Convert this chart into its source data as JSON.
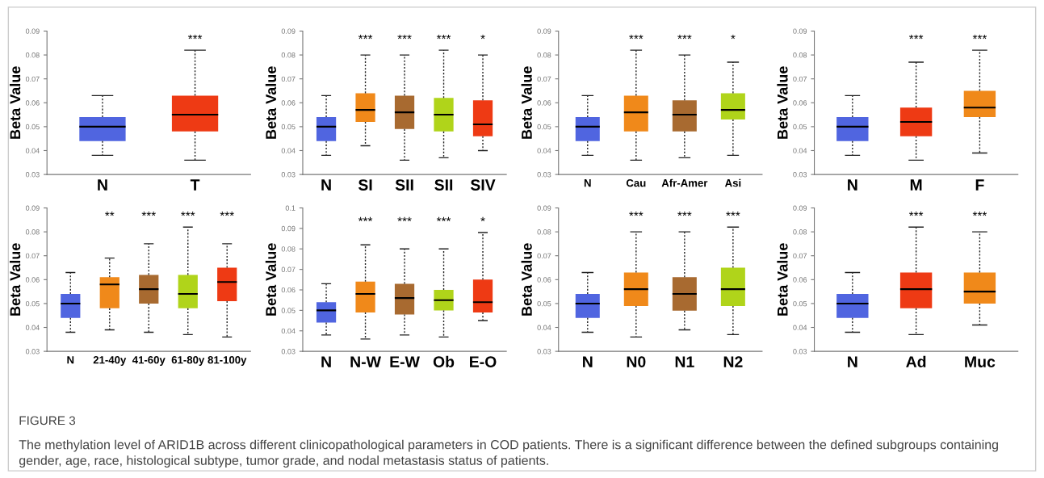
{
  "chart_data": [
    {
      "type": "box",
      "ylabel": "Beta Value",
      "categories": [
        "N",
        "T"
      ],
      "colors": [
        "#5065e0",
        "#ee3a14"
      ],
      "ylim": [
        0.03,
        0.09
      ],
      "yticks": [
        0.03,
        0.04,
        0.05,
        0.06,
        0.07,
        0.08,
        0.09
      ],
      "boxes": [
        {
          "low": 0.038,
          "q1": 0.044,
          "median": 0.05,
          "q3": 0.054,
          "high": 0.063
        },
        {
          "low": 0.036,
          "q1": 0.048,
          "median": 0.055,
          "q3": 0.063,
          "high": 0.082
        }
      ],
      "annotations": [
        "***"
      ]
    },
    {
      "type": "box",
      "ylabel": "Beta Value",
      "categories": [
        "N",
        "SI",
        "SII",
        "SII",
        "SIV"
      ],
      "colors": [
        "#5065e0",
        "#f0891a",
        "#a86a30",
        "#b0d41a",
        "#ee3a14"
      ],
      "ylim": [
        0.03,
        0.09
      ],
      "yticks": [
        0.03,
        0.04,
        0.05,
        0.06,
        0.07,
        0.08,
        0.09
      ],
      "boxes": [
        {
          "low": 0.038,
          "q1": 0.044,
          "median": 0.05,
          "q3": 0.054,
          "high": 0.063
        },
        {
          "low": 0.042,
          "q1": 0.052,
          "median": 0.057,
          "q3": 0.064,
          "high": 0.08
        },
        {
          "low": 0.036,
          "q1": 0.049,
          "median": 0.056,
          "q3": 0.063,
          "high": 0.08
        },
        {
          "low": 0.037,
          "q1": 0.048,
          "median": 0.055,
          "q3": 0.062,
          "high": 0.082
        },
        {
          "low": 0.04,
          "q1": 0.046,
          "median": 0.051,
          "q3": 0.061,
          "high": 0.08
        }
      ],
      "annotations": [
        "***",
        "***",
        "***",
        "*"
      ]
    },
    {
      "type": "box",
      "ylabel": "Beta Value",
      "categories": [
        "N",
        "Cau",
        "Afr-Amer",
        "Asi"
      ],
      "colors": [
        "#5065e0",
        "#f0891a",
        "#a86a30",
        "#b0d41a"
      ],
      "ylim": [
        0.03,
        0.09
      ],
      "yticks": [
        0.03,
        0.04,
        0.05,
        0.06,
        0.07,
        0.08,
        0.09
      ],
      "boxes": [
        {
          "low": 0.038,
          "q1": 0.044,
          "median": 0.05,
          "q3": 0.054,
          "high": 0.063
        },
        {
          "low": 0.036,
          "q1": 0.048,
          "median": 0.056,
          "q3": 0.063,
          "high": 0.082
        },
        {
          "low": 0.037,
          "q1": 0.048,
          "median": 0.055,
          "q3": 0.061,
          "high": 0.08
        },
        {
          "low": 0.038,
          "q1": 0.053,
          "median": 0.057,
          "q3": 0.064,
          "high": 0.077
        }
      ],
      "annotations": [
        "***",
        "***",
        "*"
      ]
    },
    {
      "type": "box",
      "ylabel": "Beta Value",
      "categories": [
        "N",
        "M",
        "F"
      ],
      "colors": [
        "#5065e0",
        "#ee3a14",
        "#f0891a"
      ],
      "ylim": [
        0.03,
        0.09
      ],
      "yticks": [
        0.03,
        0.04,
        0.05,
        0.06,
        0.07,
        0.08,
        0.09
      ],
      "boxes": [
        {
          "low": 0.038,
          "q1": 0.044,
          "median": 0.05,
          "q3": 0.054,
          "high": 0.063
        },
        {
          "low": 0.036,
          "q1": 0.046,
          "median": 0.052,
          "q3": 0.058,
          "high": 0.077
        },
        {
          "low": 0.039,
          "q1": 0.054,
          "median": 0.058,
          "q3": 0.065,
          "high": 0.082
        }
      ],
      "annotations": [
        "***",
        "***"
      ]
    },
    {
      "type": "box",
      "ylabel": "Beta Value",
      "categories": [
        "N",
        "21-40y",
        "41-60y",
        "61-80y",
        "81-100y"
      ],
      "colors": [
        "#5065e0",
        "#f0891a",
        "#a86a30",
        "#b0d41a",
        "#ee3a14"
      ],
      "ylim": [
        0.03,
        0.09
      ],
      "yticks": [
        0.03,
        0.04,
        0.05,
        0.06,
        0.07,
        0.08,
        0.09
      ],
      "boxes": [
        {
          "low": 0.038,
          "q1": 0.044,
          "median": 0.05,
          "q3": 0.054,
          "high": 0.063
        },
        {
          "low": 0.039,
          "q1": 0.048,
          "median": 0.058,
          "q3": 0.061,
          "high": 0.069
        },
        {
          "low": 0.038,
          "q1": 0.05,
          "median": 0.056,
          "q3": 0.062,
          "high": 0.075
        },
        {
          "low": 0.037,
          "q1": 0.048,
          "median": 0.054,
          "q3": 0.062,
          "high": 0.082
        },
        {
          "low": 0.036,
          "q1": 0.051,
          "median": 0.059,
          "q3": 0.065,
          "high": 0.075
        }
      ],
      "annotations": [
        "**",
        "***",
        "***",
        "***"
      ]
    },
    {
      "type": "box",
      "ylabel": "Beta Value",
      "categories": [
        "N",
        "N-W",
        "E-W",
        "Ob",
        "E-O"
      ],
      "colors": [
        "#5065e0",
        "#f0891a",
        "#a86a30",
        "#b0d41a",
        "#ee3a14"
      ],
      "ylim": [
        0.03,
        0.1
      ],
      "yticks": [
        0.03,
        0.04,
        0.05,
        0.06,
        0.07,
        0.08,
        0.09,
        0.1
      ],
      "boxes": [
        {
          "low": 0.038,
          "q1": 0.044,
          "median": 0.05,
          "q3": 0.054,
          "high": 0.063
        },
        {
          "low": 0.036,
          "q1": 0.049,
          "median": 0.058,
          "q3": 0.064,
          "high": 0.082
        },
        {
          "low": 0.038,
          "q1": 0.048,
          "median": 0.056,
          "q3": 0.063,
          "high": 0.08
        },
        {
          "low": 0.037,
          "q1": 0.05,
          "median": 0.055,
          "q3": 0.06,
          "high": 0.08
        },
        {
          "low": 0.045,
          "q1": 0.049,
          "median": 0.054,
          "q3": 0.065,
          "high": 0.088
        }
      ],
      "annotations": [
        "***",
        "***",
        "***",
        "*"
      ]
    },
    {
      "type": "box",
      "ylabel": "Beta Value",
      "categories": [
        "N",
        "N0",
        "N1",
        "N2"
      ],
      "colors": [
        "#5065e0",
        "#f0891a",
        "#a86a30",
        "#b0d41a"
      ],
      "ylim": [
        0.03,
        0.09
      ],
      "yticks": [
        0.03,
        0.04,
        0.05,
        0.06,
        0.07,
        0.08,
        0.09
      ],
      "boxes": [
        {
          "low": 0.038,
          "q1": 0.044,
          "median": 0.05,
          "q3": 0.054,
          "high": 0.063
        },
        {
          "low": 0.036,
          "q1": 0.049,
          "median": 0.056,
          "q3": 0.063,
          "high": 0.08
        },
        {
          "low": 0.039,
          "q1": 0.047,
          "median": 0.054,
          "q3": 0.061,
          "high": 0.08
        },
        {
          "low": 0.037,
          "q1": 0.049,
          "median": 0.056,
          "q3": 0.065,
          "high": 0.082
        }
      ],
      "annotations": [
        "***",
        "***",
        "***"
      ]
    },
    {
      "type": "box",
      "ylabel": "Beta Value",
      "categories": [
        "N",
        "Ad",
        "Muc"
      ],
      "colors": [
        "#5065e0",
        "#ee3a14",
        "#f0891a"
      ],
      "ylim": [
        0.03,
        0.09
      ],
      "yticks": [
        0.03,
        0.04,
        0.05,
        0.06,
        0.07,
        0.08,
        0.09
      ],
      "boxes": [
        {
          "low": 0.038,
          "q1": 0.044,
          "median": 0.05,
          "q3": 0.054,
          "high": 0.063
        },
        {
          "low": 0.037,
          "q1": 0.048,
          "median": 0.056,
          "q3": 0.063,
          "high": 0.082
        },
        {
          "low": 0.041,
          "q1": 0.05,
          "median": 0.055,
          "q3": 0.063,
          "high": 0.08
        }
      ],
      "annotations": [
        "***",
        "***",
        "FIGURE 3",
        "The methylation level of ARID1B across different clinicopathological parameters in COD patients. There is a significant difference between the defined subgroups containing gender, age, race, histological subtype, tumor grade, and nodal metastasis status of patients."
      ]
    }
  ]
}
